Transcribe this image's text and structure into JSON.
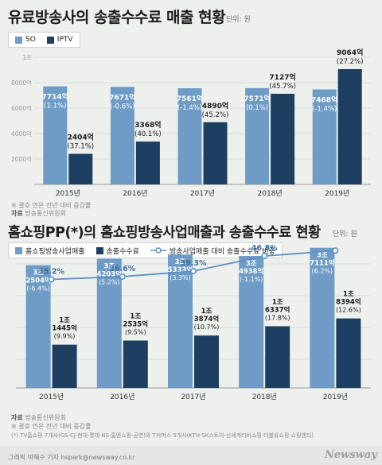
{
  "chart1": {
    "title": "유료방송사의 송출수수료 매출 현황",
    "unit": "단위: 원",
    "legend": [
      {
        "label": "SO",
        "color": "#6e9cc6"
      },
      {
        "label": "IPTV",
        "color": "#1d3f62"
      }
    ],
    "note": "※ 괄호 안은 전년 대비 증감률",
    "source_label": "자료",
    "source": "방송통신위원회"
  },
  "chart2": {
    "title": "홈쇼핑PP(*)의 홈쇼핑방송사업매출과 송출수수료 현황",
    "unit": "단위: 원",
    "legend": [
      {
        "label": "홈쇼핑방송사업매출",
        "color": "#6e9cc6"
      },
      {
        "label": "송출수수료",
        "color": "#1d3f62"
      },
      {
        "label": "방송사업매출 대비 송출수수료 비중",
        "color": "#5b8fc4"
      }
    ],
    "note": "※ 괄호 안은 전년 대비 증감률",
    "source_label": "자료",
    "source": "방송통신위원회",
    "footnote": "(*) TV홈쇼핑 7개사(GS·CJ·현대·롯데·NS·홈앤쇼핑·공영)와 T커머스 5개사(KTH·SK스토아·신세계티비쇼핑·더블유쇼핑·쇼핑엔티)"
  },
  "footer": {
    "credit": "그래픽 박혜수 기자 hspark@newsway.co.kr",
    "logo": "Newsway"
  },
  "chart_data": [
    {
      "type": "bar",
      "title": "유료방송사의 송출수수료 매출 현황",
      "categories": [
        "2015년",
        "2016년",
        "2017년",
        "2018년",
        "2019년"
      ],
      "ylim": [
        0,
        10000
      ],
      "yticks": [
        "2000억",
        "4000억",
        "6000억",
        "8000억",
        "1조"
      ],
      "series": [
        {
          "name": "SO",
          "values": [
            7714,
            7671,
            7561,
            7571,
            7468
          ],
          "labels": [
            "7714억",
            "7671억",
            "7561억",
            "7571억",
            "7468억"
          ],
          "changes": [
            "(1.1%)",
            "(-0.6%)",
            "(-1.4%)",
            "(0.1%)",
            "(-1.4%)"
          ]
        },
        {
          "name": "IPTV",
          "values": [
            2404,
            3368,
            4890,
            7127,
            9064
          ],
          "labels": [
            "2404억",
            "3368억",
            "4890억",
            "7127억",
            "9064억"
          ],
          "changes": [
            "(37.1%)",
            "(40.1%)",
            "(45.2%)",
            "(45.7%)",
            "(27.2%)"
          ]
        }
      ]
    },
    {
      "type": "bar",
      "title": "홈쇼핑PP(*)의 홈쇼핑방송사업매출과 송출수수료 현황",
      "categories": [
        "2015년",
        "2016년",
        "2017년",
        "2018년",
        "2019년"
      ],
      "series": [
        {
          "name": "홈쇼핑방송사업매출",
          "values": [
            32504,
            34203,
            35333,
            34938,
            37111
          ],
          "labels_top": [
            "3조",
            "3조",
            "3조",
            "3조",
            "3조"
          ],
          "labels": [
            "2504억",
            "4203억",
            "5333억",
            "4938억",
            "7111억"
          ],
          "changes": [
            "(-6.4%)",
            "(5.2%)",
            "(3.3%)",
            "(-1.1%)",
            "(6.2%)"
          ]
        },
        {
          "name": "송출수수료",
          "values": [
            11445,
            12535,
            13874,
            16337,
            18394
          ],
          "labels_top": [
            "1조",
            "1조",
            "1조",
            "1조",
            "1조"
          ],
          "labels": [
            "1445억",
            "2535억",
            "3874억",
            "6337억",
            "8394억"
          ],
          "changes": [
            "(9.9%)",
            "(9.5%)",
            "(10.7%)",
            "(17.8%)",
            "(12.6%)"
          ]
        },
        {
          "name": "방송사업매출 대비 송출수수료 비중",
          "type": "line",
          "values": [
            35.2,
            36.6,
            39.3,
            46.8,
            49.5
          ],
          "labels": [
            "35.2%",
            "36.6%",
            "39.3%",
            "46.8%",
            ""
          ]
        }
      ]
    }
  ]
}
